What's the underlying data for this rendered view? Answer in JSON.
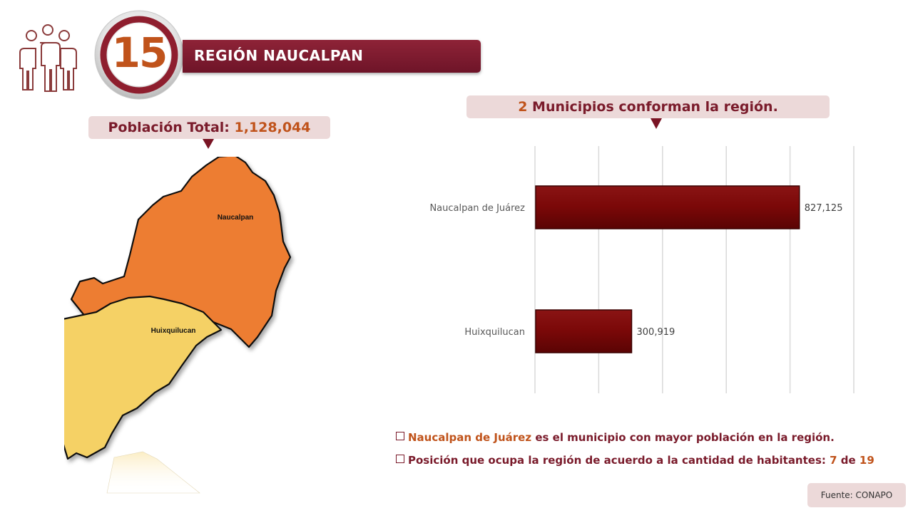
{
  "header": {
    "region_number": "15",
    "region_title": "REGIÓN NAUCALPAN",
    "icon": "people-group-icon"
  },
  "population": {
    "label": "Población Total: ",
    "value": "1,128,044"
  },
  "map": {
    "regions": [
      {
        "label": "Naucalpan",
        "color": "#ed7d31"
      },
      {
        "label": "Huixquilucan",
        "color": "#f5d165"
      }
    ]
  },
  "chart_header": {
    "count": "2",
    "text": " Municipios conforman la región."
  },
  "chart_data": {
    "type": "bar",
    "orientation": "horizontal",
    "categories": [
      "Naucalpan de Juárez",
      "Huixquilucan"
    ],
    "values": [
      827125,
      300919
    ],
    "value_labels": [
      "827,125",
      "300,919"
    ],
    "xlim": [
      0,
      1000000
    ],
    "grid": true,
    "bar_color": "#7a0a0a",
    "title": "",
    "xlabel": "",
    "ylabel": ""
  },
  "notes": {
    "note1_highlight": "Naucalpan de Juárez",
    "note1_text": " es el municipio con mayor población en la región.",
    "note2_text": "Posición que ocupa la región de acuerdo a la cantidad de habitantes: ",
    "note2_position": "7",
    "note2_de": " de ",
    "note2_total": "19"
  },
  "source": "Fuente: CONAPO",
  "colors": {
    "maroon": "#7a1b2b",
    "orange": "#c0531b",
    "label_bg": "#ecd9d9"
  }
}
